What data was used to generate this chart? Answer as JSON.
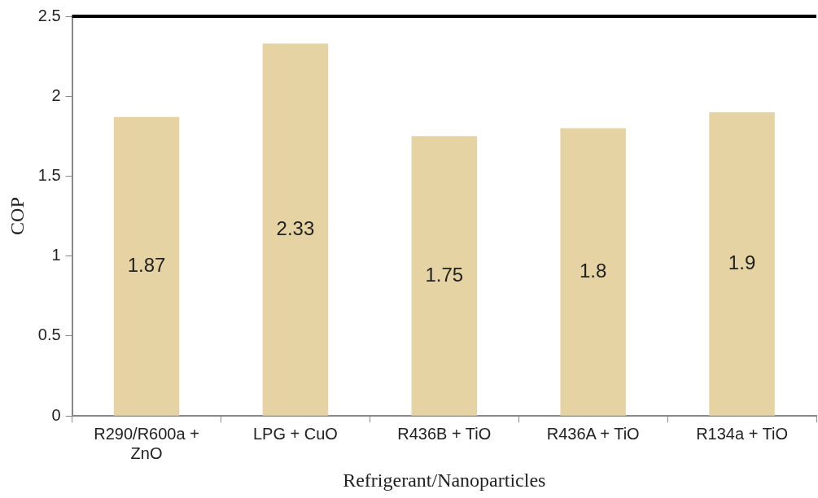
{
  "chart_data": {
    "type": "bar",
    "xlabel": "Refrigerant/Nanoparticles",
    "ylabel": "COP",
    "categories": [
      "R290/R600a + ZnO",
      "LPG + CuO",
      "R436B + TiO",
      "R436A + TiO",
      "R134a + TiO"
    ],
    "values": [
      1.87,
      2.33,
      1.75,
      1.8,
      1.9
    ],
    "color": "#e6d3a3",
    "ylim": [
      0,
      2.5
    ],
    "yticks": [
      0,
      0.5,
      1,
      1.5,
      2,
      2.5
    ],
    "grid": false,
    "legend": false,
    "data_labels": true
  }
}
